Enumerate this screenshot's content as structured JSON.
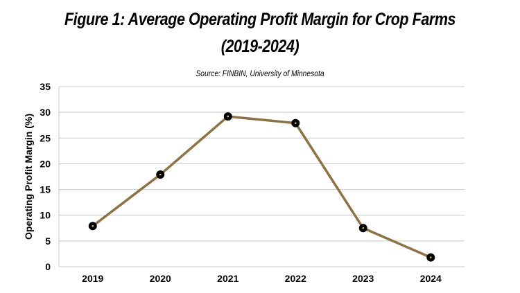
{
  "chart_data": {
    "type": "line",
    "title_line1": "Figure 1: Average Operating Profit Margin for Crop Farms",
    "title_line2": "(2019-2024)",
    "subtitle": "Source: FINBIN, University of Minnesota",
    "xlabel": "",
    "ylabel": "Operating Profit Margin (%)",
    "categories": [
      "2019",
      "2020",
      "2021",
      "2022",
      "2023",
      "2024"
    ],
    "series": [
      {
        "values": [
          7.9,
          17.9,
          29.2,
          27.9,
          7.5,
          1.8
        ]
      }
    ],
    "ylim": [
      0,
      35
    ],
    "yticks": [
      0,
      5,
      10,
      15,
      20,
      25,
      30,
      35
    ],
    "grid": true,
    "legend": "none",
    "colors": {
      "line": "#8c7246",
      "marker": "#000000",
      "grid": "#c8c8c8"
    }
  }
}
